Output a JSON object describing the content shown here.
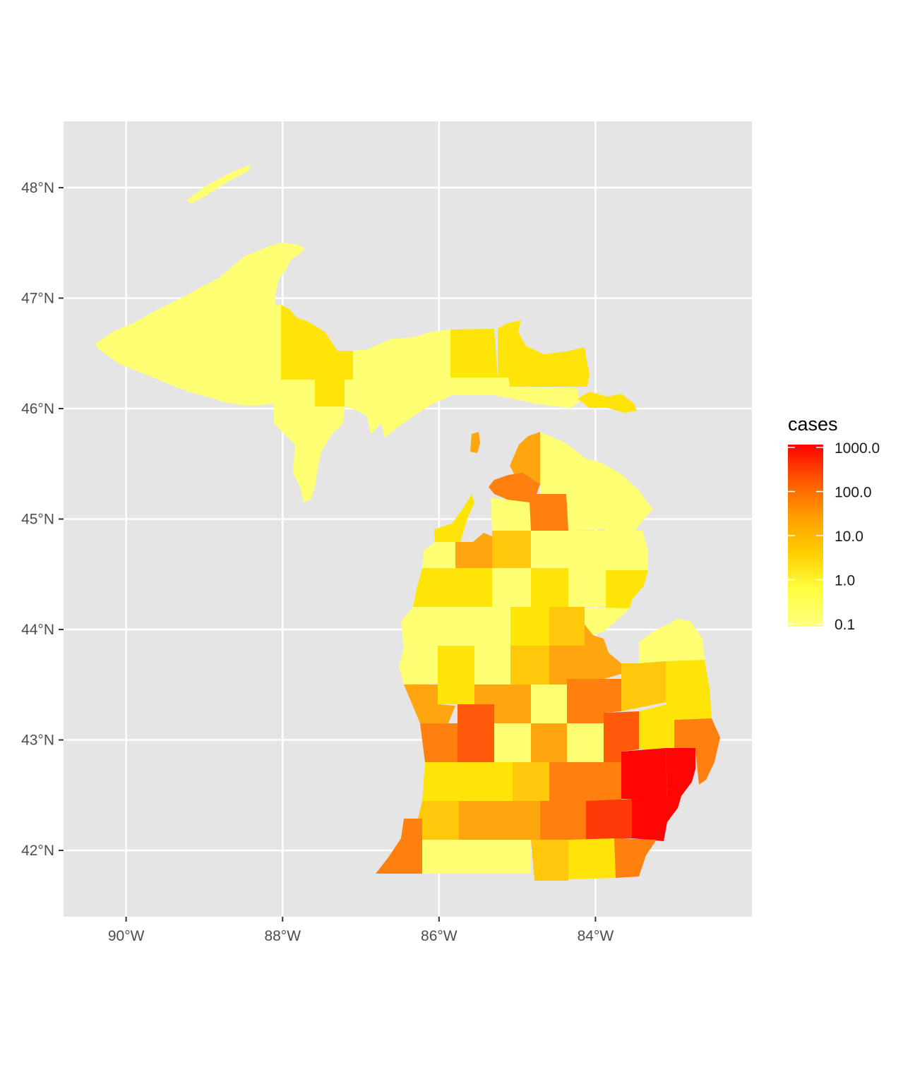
{
  "map": {
    "region": "Michigan",
    "fill_variable": "cases",
    "x_axis": {
      "tick_labels": [
        "90°W",
        "88°W",
        "86°W",
        "84°W"
      ],
      "lon_values": [
        -90,
        -88,
        -86,
        -84
      ]
    },
    "y_axis": {
      "tick_labels": [
        "48°N",
        "47°N",
        "46°N",
        "45°N",
        "44°N",
        "43°N",
        "42°N"
      ],
      "lat_values": [
        48,
        47,
        46,
        45,
        44,
        43,
        42
      ]
    },
    "lon_range": [
      -90.8,
      -82.0
    ],
    "lat_range": [
      41.4,
      48.6
    ],
    "grid": true,
    "panel_background": "#e5e5e5",
    "grid_color": "#ffffff",
    "legend": {
      "title": "cases",
      "scale": "log10",
      "breaks": [
        "1000.0",
        "100.0",
        "10.0",
        "1.0",
        "0.1"
      ],
      "position": "right",
      "gradient": [
        "#ff0000",
        "#ff5a00",
        "#ff9f00",
        "#ffd000",
        "#ffff40",
        "#ffff80"
      ]
    },
    "fill_colors": {
      "v01": "#ffff73",
      "v1": "#ffe40a",
      "v3": "#ffc80a",
      "v10": "#ffa510",
      "v30": "#ff7f0f",
      "v100": "#ff5a0a",
      "v300": "#ff3a08",
      "v1000": "#ff0505"
    }
  }
}
